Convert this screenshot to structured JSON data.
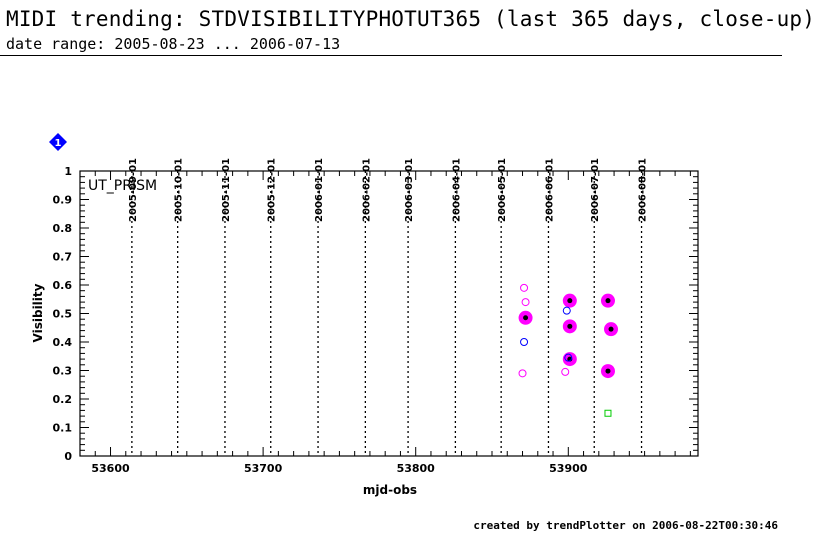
{
  "header": {
    "title": "MIDI trending: STDVISIBILITYPHOTUT365 (last 365 days, close-up)",
    "subtitle": "date range: 2005-08-23 ... 2006-07-13"
  },
  "footer": {
    "text": "created by trendPlotter on 2006-08-22T00:30:46"
  },
  "colors": {
    "magenta": "#ff00ff",
    "blue": "#0000ff",
    "green": "#00cc00",
    "black": "#000000",
    "marker_badge": "#0000ff"
  },
  "badge_icon": {
    "icon": "diamond-badge-icon",
    "label": "1"
  },
  "chart_data": {
    "type": "scatter",
    "panel_label": "UT_PRISM",
    "xlabel": "mjd-obs",
    "ylabel": "Visibility",
    "xlim": [
      53580,
      53985
    ],
    "ylim": [
      0,
      1
    ],
    "x_ticks": [
      53600,
      53700,
      53800,
      53900
    ],
    "y_ticks": [
      0,
      0.1,
      0.2,
      0.3,
      0.4,
      0.5,
      0.6,
      0.7,
      0.8,
      0.9,
      1
    ],
    "month_markers": [
      {
        "mjd": 53614,
        "label": "2005-09-01"
      },
      {
        "mjd": 53644,
        "label": "2005-10-01"
      },
      {
        "mjd": 53675,
        "label": "2005-11-01"
      },
      {
        "mjd": 53705,
        "label": "2005-12-01"
      },
      {
        "mjd": 53736,
        "label": "2006-01-01"
      },
      {
        "mjd": 53767,
        "label": "2006-02-01"
      },
      {
        "mjd": 53795,
        "label": "2006-03-01"
      },
      {
        "mjd": 53826,
        "label": "2006-04-01"
      },
      {
        "mjd": 53856,
        "label": "2006-05-01"
      },
      {
        "mjd": 53887,
        "label": "2006-06-01"
      },
      {
        "mjd": 53917,
        "label": "2006-07-01"
      },
      {
        "mjd": 53948,
        "label": "2006-08-01"
      }
    ],
    "series": [
      {
        "style": "magenta-filled-black-dot",
        "points": [
          [
            53872,
            0.485
          ],
          [
            53901,
            0.545
          ],
          [
            53901,
            0.455
          ],
          [
            53901,
            0.34
          ],
          [
            53926,
            0.545
          ],
          [
            53928,
            0.445
          ],
          [
            53926,
            0.298
          ]
        ]
      },
      {
        "style": "magenta-open-circle",
        "points": [
          [
            53871,
            0.59
          ],
          [
            53872,
            0.54
          ],
          [
            53870,
            0.29
          ],
          [
            53898,
            0.295
          ]
        ]
      },
      {
        "style": "blue-open-circle",
        "points": [
          [
            53871,
            0.4
          ],
          [
            53899,
            0.51
          ],
          [
            53900,
            0.345
          ]
        ]
      },
      {
        "style": "green-open-square",
        "points": [
          [
            53926,
            0.15
          ]
        ]
      }
    ],
    "grid": false,
    "legend": "none"
  }
}
